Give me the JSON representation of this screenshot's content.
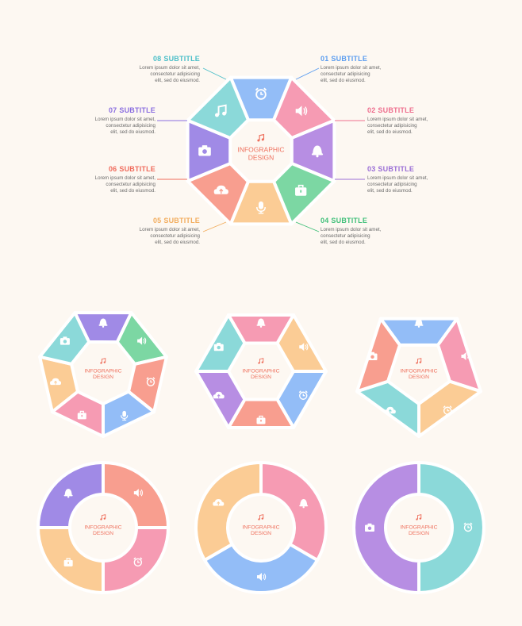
{
  "center": {
    "line1": "INFOGRAPHIC",
    "line2": "DESIGN",
    "icon": "music-note-icon"
  },
  "colors": {
    "blue": "#93bdf7",
    "pink": "#f69bb3",
    "purple": "#b78ee3",
    "green": "#7cd7a3",
    "yellow": "#fbcc95",
    "salmon": "#f89e8f",
    "violet": "#a08ae6",
    "teal": "#8bd9d9",
    "centerText": "#ee6f5c"
  },
  "labels": [
    {
      "num": "01",
      "title": "SUBTITLE",
      "color": "#5b9df0",
      "text": "Lorem ipsum dolor sit amet,\nconsectetur adipisicing\nelit, sed do eiusmod."
    },
    {
      "num": "02",
      "title": "SUBTITLE",
      "color": "#ee6f8f",
      "text": "Lorem ipsum dolor sit amet,\nconsectetur adipisicing\nelit, sed do eiusmod."
    },
    {
      "num": "03",
      "title": "SUBTITLE",
      "color": "#9a6ed6",
      "text": "Lorem ipsum dolor sit amet,\nconsectetur adipisicing\nelit, sed do eiusmod."
    },
    {
      "num": "04",
      "title": "SUBTITLE",
      "color": "#3fbf79",
      "text": "Lorem ipsum dolor sit amet,\nconsectetur adipisicing\nelit, sed do eiusmod."
    },
    {
      "num": "05",
      "title": "SUBTITLE",
      "color": "#f2ad5e",
      "text": "Lorem ipsum dolor sit amet,\nconsectetur adipisicing\nelit, sed do eiusmod."
    },
    {
      "num": "06",
      "title": "SUBTITLE",
      "color": "#f06b5c",
      "text": "Lorem ipsum dolor sit amet,\nconsectetur adipisicing\nelit, sed do eiusmod."
    },
    {
      "num": "07",
      "title": "SUBTITLE",
      "color": "#8a6ee0",
      "text": "Lorem ipsum dolor sit amet,\nconsectetur adipisicing\nelit, sed do eiusmod."
    },
    {
      "num": "08",
      "title": "SUBTITLE",
      "color": "#4cbfc9",
      "text": "Lorem ipsum dolor sit amet,\nconsectetur adipisicing\nelit, sed do eiusmod."
    }
  ],
  "diagrams": [
    {
      "id": "main-8",
      "segments": [
        {
          "color": "blue",
          "icon": "clock-icon"
        },
        {
          "color": "pink",
          "icon": "speaker-icon"
        },
        {
          "color": "purple",
          "icon": "bell-icon"
        },
        {
          "color": "green",
          "icon": "briefcase-icon"
        },
        {
          "color": "yellow",
          "icon": "microphone-icon"
        },
        {
          "color": "salmon",
          "icon": "cloud-upload-icon"
        },
        {
          "color": "violet",
          "icon": "camera-icon"
        },
        {
          "color": "teal",
          "icon": "music-note-icon"
        }
      ]
    },
    {
      "id": "ring-7",
      "segments": [
        {
          "color": "violet",
          "icon": "bell-icon"
        },
        {
          "color": "green",
          "icon": "speaker-icon"
        },
        {
          "color": "salmon",
          "icon": "clock-icon"
        },
        {
          "color": "blue",
          "icon": "microphone-icon"
        },
        {
          "color": "pink",
          "icon": "briefcase-icon"
        },
        {
          "color": "yellow",
          "icon": "cloud-upload-icon"
        },
        {
          "color": "teal",
          "icon": "camera-icon"
        }
      ]
    },
    {
      "id": "ring-6",
      "segments": [
        {
          "color": "pink",
          "icon": "bell-icon"
        },
        {
          "color": "yellow",
          "icon": "speaker-icon"
        },
        {
          "color": "blue",
          "icon": "clock-icon"
        },
        {
          "color": "salmon",
          "icon": "briefcase-icon"
        },
        {
          "color": "purple",
          "icon": "cloud-upload-icon"
        },
        {
          "color": "teal",
          "icon": "camera-icon"
        }
      ]
    },
    {
      "id": "ring-5",
      "segments": [
        {
          "color": "blue",
          "icon": "bell-icon"
        },
        {
          "color": "pink",
          "icon": "speaker-icon"
        },
        {
          "color": "yellow",
          "icon": "clock-icon"
        },
        {
          "color": "teal",
          "icon": "cloud-upload-icon"
        },
        {
          "color": "salmon",
          "icon": "camera-icon"
        }
      ]
    },
    {
      "id": "ring-4",
      "segments": [
        {
          "color": "salmon",
          "icon": "speaker-icon"
        },
        {
          "color": "pink",
          "icon": "clock-icon"
        },
        {
          "color": "yellow",
          "icon": "briefcase-icon"
        },
        {
          "color": "violet",
          "icon": "bell-icon"
        }
      ]
    },
    {
      "id": "ring-3",
      "segments": [
        {
          "color": "pink",
          "icon": "bell-icon"
        },
        {
          "color": "blue",
          "icon": "speaker-icon"
        },
        {
          "color": "yellow",
          "icon": "cloud-upload-icon"
        }
      ]
    },
    {
      "id": "ring-2",
      "segments": [
        {
          "color": "teal",
          "icon": "clock-icon"
        },
        {
          "color": "purple",
          "icon": "camera-icon"
        }
      ]
    }
  ]
}
